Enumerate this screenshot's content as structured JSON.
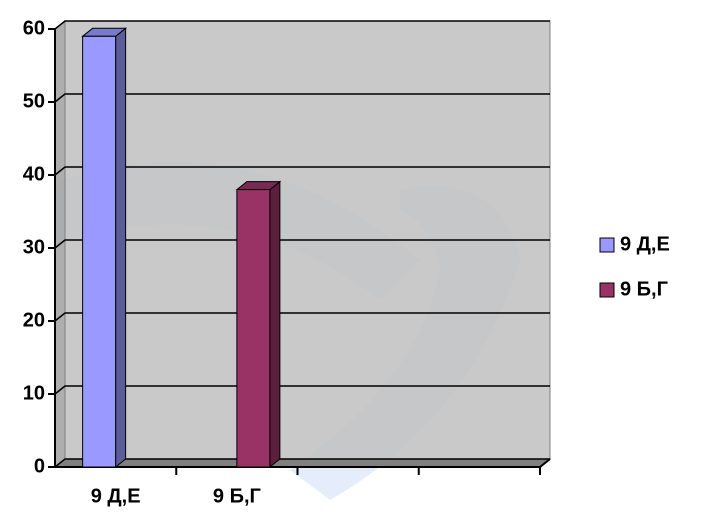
{
  "chart_data": {
    "type": "bar3d",
    "categories": [
      "9 Д,Е",
      "9 Б,Г",
      null,
      null
    ],
    "series": [
      {
        "name": "9 Д,Е",
        "color": "#9999ff",
        "values": [
          59,
          null,
          null,
          null
        ]
      },
      {
        "name": "9 Б,Г",
        "color": "#993366",
        "values": [
          null,
          38,
          null,
          null
        ]
      }
    ],
    "ylim": [
      0,
      60
    ],
    "yticks": [
      0,
      10,
      20,
      30,
      40,
      50,
      60
    ],
    "grid": true,
    "legend": "right"
  }
}
